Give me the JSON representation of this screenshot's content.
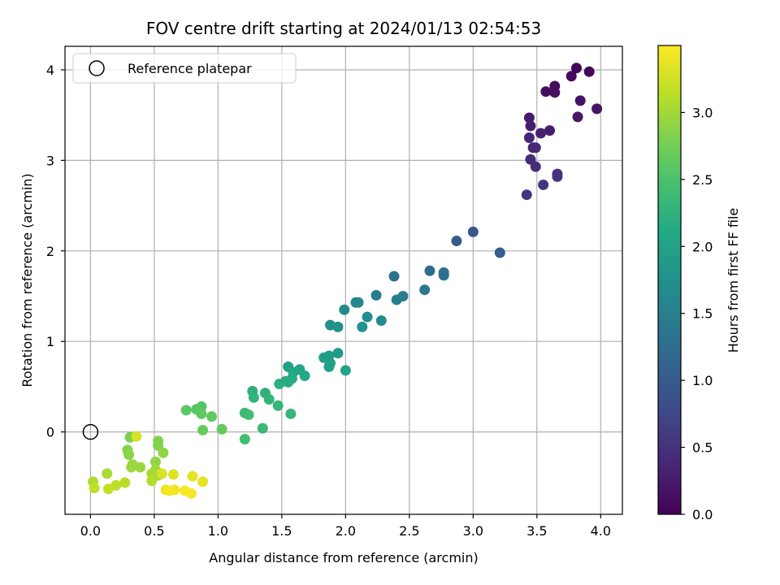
{
  "chart_data": {
    "type": "scatter",
    "title": "FOV centre drift starting at 2024/01/13 02:54:53",
    "xlabel": "Angular distance from reference (arcmin)",
    "ylabel": "Rotation from reference (arcmin)",
    "xlim": [
      -0.2,
      4.17
    ],
    "ylim": [
      -0.91,
      4.26
    ],
    "x_ticks": [
      "0.0",
      "0.5",
      "1.0",
      "1.5",
      "2.0",
      "2.5",
      "3.0",
      "3.5",
      "4.0"
    ],
    "x_tick_values": [
      0,
      0.5,
      1,
      1.5,
      2,
      2.5,
      3,
      3.5,
      4
    ],
    "y_ticks": [
      "0",
      "1",
      "2",
      "3",
      "4"
    ],
    "y_tick_values": [
      0,
      1,
      2,
      3,
      4
    ],
    "grid": true,
    "legend": {
      "placement": "top-left",
      "label": "Reference platepar"
    },
    "reference_point": {
      "x": 0,
      "y": 0
    },
    "colorbar": {
      "label": "Hours from first FF file",
      "range": [
        0,
        3.5
      ],
      "ticks": [
        "0.0",
        "0.5",
        "1.0",
        "1.5",
        "2.0",
        "2.5",
        "3.0"
      ],
      "tick_values": [
        0,
        0.5,
        1,
        1.5,
        2,
        2.5,
        3
      ],
      "colormap": "viridis"
    },
    "points": [
      {
        "x": 3.81,
        "y": 4.02,
        "t": 0.03
      },
      {
        "x": 3.91,
        "y": 3.98,
        "t": 0.05
      },
      {
        "x": 3.77,
        "y": 3.93,
        "t": 0.08
      },
      {
        "x": 3.64,
        "y": 3.82,
        "t": 0.1
      },
      {
        "x": 3.57,
        "y": 3.76,
        "t": 0.12
      },
      {
        "x": 3.64,
        "y": 3.75,
        "t": 0.15
      },
      {
        "x": 3.84,
        "y": 3.66,
        "t": 0.17
      },
      {
        "x": 3.97,
        "y": 3.57,
        "t": 0.19
      },
      {
        "x": 3.82,
        "y": 3.48,
        "t": 0.21
      },
      {
        "x": 3.44,
        "y": 3.47,
        "t": 0.25
      },
      {
        "x": 3.45,
        "y": 3.38,
        "t": 0.28
      },
      {
        "x": 3.6,
        "y": 3.33,
        "t": 0.3
      },
      {
        "x": 3.53,
        "y": 3.3,
        "t": 0.32
      },
      {
        "x": 3.44,
        "y": 3.25,
        "t": 0.35
      },
      {
        "x": 3.47,
        "y": 3.14,
        "t": 0.38
      },
      {
        "x": 3.49,
        "y": 3.14,
        "t": 0.4
      },
      {
        "x": 3.45,
        "y": 3.01,
        "t": 0.43
      },
      {
        "x": 3.49,
        "y": 2.93,
        "t": 0.46
      },
      {
        "x": 3.66,
        "y": 2.85,
        "t": 0.48
      },
      {
        "x": 3.66,
        "y": 2.82,
        "t": 0.5
      },
      {
        "x": 3.55,
        "y": 2.73,
        "t": 0.52
      },
      {
        "x": 3.42,
        "y": 2.62,
        "t": 0.55
      },
      {
        "x": 3.0,
        "y": 2.21,
        "t": 0.95
      },
      {
        "x": 2.87,
        "y": 2.11,
        "t": 1.0
      },
      {
        "x": 3.21,
        "y": 1.98,
        "t": 1.03
      },
      {
        "x": 2.66,
        "y": 1.78,
        "t": 1.25
      },
      {
        "x": 2.77,
        "y": 1.76,
        "t": 1.28
      },
      {
        "x": 2.77,
        "y": 1.73,
        "t": 1.3
      },
      {
        "x": 2.38,
        "y": 1.72,
        "t": 1.35
      },
      {
        "x": 2.62,
        "y": 1.57,
        "t": 1.4
      },
      {
        "x": 2.24,
        "y": 1.51,
        "t": 1.45
      },
      {
        "x": 2.45,
        "y": 1.5,
        "t": 1.48
      },
      {
        "x": 2.4,
        "y": 1.46,
        "t": 1.5
      },
      {
        "x": 2.08,
        "y": 1.43,
        "t": 1.6
      },
      {
        "x": 2.1,
        "y": 1.43,
        "t": 1.62
      },
      {
        "x": 1.99,
        "y": 1.35,
        "t": 1.65
      },
      {
        "x": 2.17,
        "y": 1.27,
        "t": 1.68
      },
      {
        "x": 2.28,
        "y": 1.23,
        "t": 1.7
      },
      {
        "x": 1.88,
        "y": 1.18,
        "t": 1.75
      },
      {
        "x": 1.94,
        "y": 1.16,
        "t": 1.78
      },
      {
        "x": 2.13,
        "y": 1.16,
        "t": 1.8
      },
      {
        "x": 1.94,
        "y": 0.87,
        "t": 1.9
      },
      {
        "x": 1.87,
        "y": 0.84,
        "t": 1.92
      },
      {
        "x": 1.83,
        "y": 0.82,
        "t": 1.94
      },
      {
        "x": 1.88,
        "y": 0.76,
        "t": 1.96
      },
      {
        "x": 1.87,
        "y": 0.72,
        "t": 1.98
      },
      {
        "x": 1.55,
        "y": 0.72,
        "t": 2.0
      },
      {
        "x": 1.64,
        "y": 0.69,
        "t": 2.02
      },
      {
        "x": 2.0,
        "y": 0.68,
        "t": 2.05
      },
      {
        "x": 1.59,
        "y": 0.66,
        "t": 2.08
      },
      {
        "x": 1.68,
        "y": 0.62,
        "t": 2.1
      },
      {
        "x": 1.58,
        "y": 0.59,
        "t": 2.12
      },
      {
        "x": 1.53,
        "y": 0.56,
        "t": 2.15
      },
      {
        "x": 1.55,
        "y": 0.55,
        "t": 2.17
      },
      {
        "x": 1.48,
        "y": 0.53,
        "t": 2.2
      },
      {
        "x": 1.27,
        "y": 0.45,
        "t": 2.22
      },
      {
        "x": 1.37,
        "y": 0.43,
        "t": 2.24
      },
      {
        "x": 1.28,
        "y": 0.38,
        "t": 2.26
      },
      {
        "x": 1.4,
        "y": 0.36,
        "t": 2.28
      },
      {
        "x": 1.47,
        "y": 0.29,
        "t": 2.3
      },
      {
        "x": 1.57,
        "y": 0.2,
        "t": 2.32
      },
      {
        "x": 1.35,
        "y": 0.04,
        "t": 2.34
      },
      {
        "x": 1.21,
        "y": 0.21,
        "t": 2.38
      },
      {
        "x": 1.24,
        "y": 0.19,
        "t": 2.4
      },
      {
        "x": 1.21,
        "y": -0.08,
        "t": 2.42
      },
      {
        "x": 0.87,
        "y": 0.28,
        "t": 2.55
      },
      {
        "x": 0.83,
        "y": 0.25,
        "t": 2.57
      },
      {
        "x": 0.75,
        "y": 0.24,
        "t": 2.6
      },
      {
        "x": 0.87,
        "y": 0.2,
        "t": 2.62
      },
      {
        "x": 0.95,
        "y": 0.17,
        "t": 2.64
      },
      {
        "x": 1.03,
        "y": 0.03,
        "t": 2.66
      },
      {
        "x": 0.88,
        "y": 0.02,
        "t": 2.68
      },
      {
        "x": 0.31,
        "y": -0.06,
        "t": 2.8
      },
      {
        "x": 0.53,
        "y": -0.1,
        "t": 2.82
      },
      {
        "x": 0.53,
        "y": -0.15,
        "t": 2.84
      },
      {
        "x": 0.29,
        "y": -0.2,
        "t": 2.86
      },
      {
        "x": 0.3,
        "y": -0.25,
        "t": 2.88
      },
      {
        "x": 0.57,
        "y": -0.23,
        "t": 2.9
      },
      {
        "x": 0.51,
        "y": -0.33,
        "t": 2.92
      },
      {
        "x": 0.33,
        "y": -0.36,
        "t": 2.94
      },
      {
        "x": 0.39,
        "y": -0.39,
        "t": 2.96
      },
      {
        "x": 0.32,
        "y": -0.39,
        "t": 2.98
      },
      {
        "x": 0.51,
        "y": -0.42,
        "t": 3.0
      },
      {
        "x": 0.48,
        "y": -0.46,
        "t": 3.02
      },
      {
        "x": 0.13,
        "y": -0.46,
        "t": 3.04
      },
      {
        "x": 0.53,
        "y": -0.48,
        "t": 3.06
      },
      {
        "x": 0.02,
        "y": -0.55,
        "t": 3.08
      },
      {
        "x": 0.48,
        "y": -0.54,
        "t": 3.1
      },
      {
        "x": 0.27,
        "y": -0.56,
        "t": 3.12
      },
      {
        "x": 0.2,
        "y": -0.59,
        "t": 3.14
      },
      {
        "x": 0.03,
        "y": -0.62,
        "t": 3.16
      },
      {
        "x": 0.14,
        "y": -0.63,
        "t": 3.18
      },
      {
        "x": 0.36,
        "y": -0.05,
        "t": 3.3
      },
      {
        "x": 0.56,
        "y": -0.46,
        "t": 3.3
      },
      {
        "x": 0.65,
        "y": -0.47,
        "t": 3.33
      },
      {
        "x": 0.8,
        "y": -0.49,
        "t": 3.35
      },
      {
        "x": 0.88,
        "y": -0.55,
        "t": 3.37
      },
      {
        "x": 0.59,
        "y": -0.64,
        "t": 3.4
      },
      {
        "x": 0.66,
        "y": -0.64,
        "t": 3.42
      },
      {
        "x": 0.62,
        "y": -0.65,
        "t": 3.44
      },
      {
        "x": 0.74,
        "y": -0.65,
        "t": 3.46
      },
      {
        "x": 0.79,
        "y": -0.68,
        "t": 3.48
      }
    ]
  }
}
